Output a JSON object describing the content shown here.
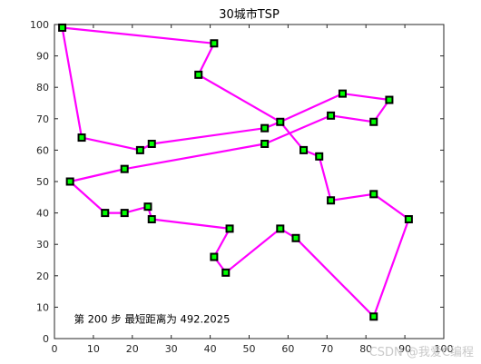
{
  "chart_data": {
    "type": "line",
    "title": "30城市TSP",
    "xlabel": "",
    "ylabel": "",
    "xlim": [
      0,
      100
    ],
    "ylim": [
      0,
      100
    ],
    "xticks": [
      0,
      10,
      20,
      30,
      40,
      50,
      60,
      70,
      80,
      90,
      100
    ],
    "yticks": [
      0,
      10,
      20,
      30,
      40,
      50,
      60,
      70,
      80,
      90,
      100
    ],
    "grid": false,
    "series": [
      {
        "route_color": "#ff00ff",
        "marker_edge_color": "#000000",
        "marker_face_color": "#00ff00",
        "x": [
          2,
          41,
          37,
          58,
          74,
          86,
          82,
          71,
          54,
          25,
          22,
          7
        ],
        "y": [
          99,
          94,
          84,
          69,
          78,
          76,
          69,
          71,
          67,
          62,
          60,
          64
        ],
        "closed": false
      }
    ],
    "route": {
      "x": [
        2,
        7,
        22,
        25,
        54,
        58,
        74,
        86,
        82,
        71,
        54,
        18,
        4,
        13,
        18,
        24,
        25,
        45,
        41,
        44,
        58,
        62,
        82,
        91,
        82,
        71,
        68,
        64,
        58,
        37,
        41,
        2
      ],
      "y": [
        99,
        64,
        60,
        62,
        67,
        69,
        78,
        76,
        69,
        71,
        62,
        54,
        50,
        40,
        40,
        42,
        38,
        35,
        26,
        21,
        35,
        32,
        7,
        38,
        46,
        44,
        58,
        60,
        69,
        84,
        94,
        99
      ]
    },
    "annotation": {
      "x": 5,
      "y": 5,
      "text": "第 200 步  最短距离为 492.2025"
    }
  },
  "watermark": "CSDN @我爱C编程"
}
